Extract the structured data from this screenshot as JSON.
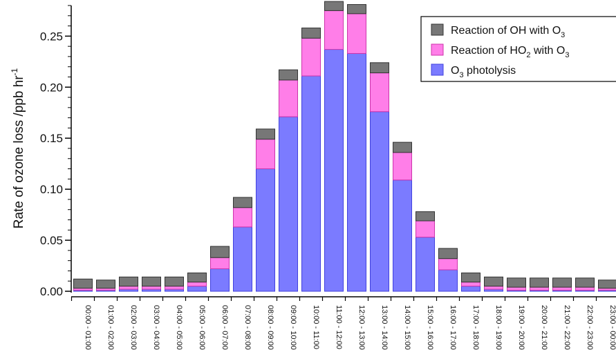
{
  "chart_data": {
    "type": "bar",
    "stacked": true,
    "title": "",
    "xlabel": "",
    "ylabel": "Rate of ozone loss /ppb hr",
    "ylabel_superscript": "-1",
    "ylim": [
      0,
      0.28
    ],
    "yticks": [
      "0.00",
      "0.05",
      "0.10",
      "0.15",
      "0.20",
      "0.25"
    ],
    "legend_position": "top-right",
    "grid": false,
    "categories": [
      "00:00 - 01:00",
      "01:00 - 02:00",
      "02:00 - 03:00",
      "03:00 - 04:00",
      "04:00 - 05:00",
      "05:00 - 06:00",
      "06:00 - 07:00",
      "07:00 - 08:00",
      "08:00 - 09:00",
      "09:00 - 10:00",
      "10:00 - 11:00",
      "11:00 - 12:00",
      "12:00 - 13:00",
      "13:00 - 14:00",
      "14:00 - 15:00",
      "15:00 - 16:00",
      "16:00 - 17:00",
      "17:00 - 18:00",
      "18:00 - 19:00",
      "19:00 - 20:00",
      "20:00 - 21:00",
      "21:00 - 22:00",
      "22:00 - 23:00",
      "23:00 - 00:00"
    ],
    "series": [
      {
        "name": "O3 photolysis",
        "legend_main": "O",
        "legend_sub": "3",
        "legend_rest": " photolysis",
        "color": "#7b7bff",
        "edge": "#4040dd",
        "values": [
          0.001,
          0.001,
          0.002,
          0.002,
          0.002,
          0.005,
          0.022,
          0.063,
          0.12,
          0.171,
          0.211,
          0.237,
          0.233,
          0.176,
          0.109,
          0.053,
          0.021,
          0.005,
          0.002,
          0.001,
          0.001,
          0.001,
          0.001,
          0.001
        ]
      },
      {
        "name": "Reaction of HO2 with O3",
        "legend_main": "Reaction of HO",
        "legend_sub": "2",
        "legend_rest": " with O",
        "legend_sub2": "3",
        "color": "#ff7ee8",
        "edge": "#cc33aa",
        "values": [
          0.002,
          0.002,
          0.003,
          0.003,
          0.003,
          0.004,
          0.011,
          0.019,
          0.029,
          0.036,
          0.037,
          0.038,
          0.039,
          0.038,
          0.027,
          0.016,
          0.011,
          0.004,
          0.003,
          0.003,
          0.003,
          0.003,
          0.003,
          0.002
        ]
      },
      {
        "name": "Reaction of OH with O3",
        "legend_main": "Reaction of OH with O",
        "legend_sub": "3",
        "legend_rest": "",
        "color": "#777777",
        "edge": "#333333",
        "values": [
          0.009,
          0.008,
          0.009,
          0.009,
          0.009,
          0.009,
          0.011,
          0.01,
          0.01,
          0.01,
          0.01,
          0.009,
          0.009,
          0.01,
          0.01,
          0.009,
          0.01,
          0.009,
          0.009,
          0.009,
          0.009,
          0.009,
          0.009,
          0.008
        ]
      }
    ]
  }
}
